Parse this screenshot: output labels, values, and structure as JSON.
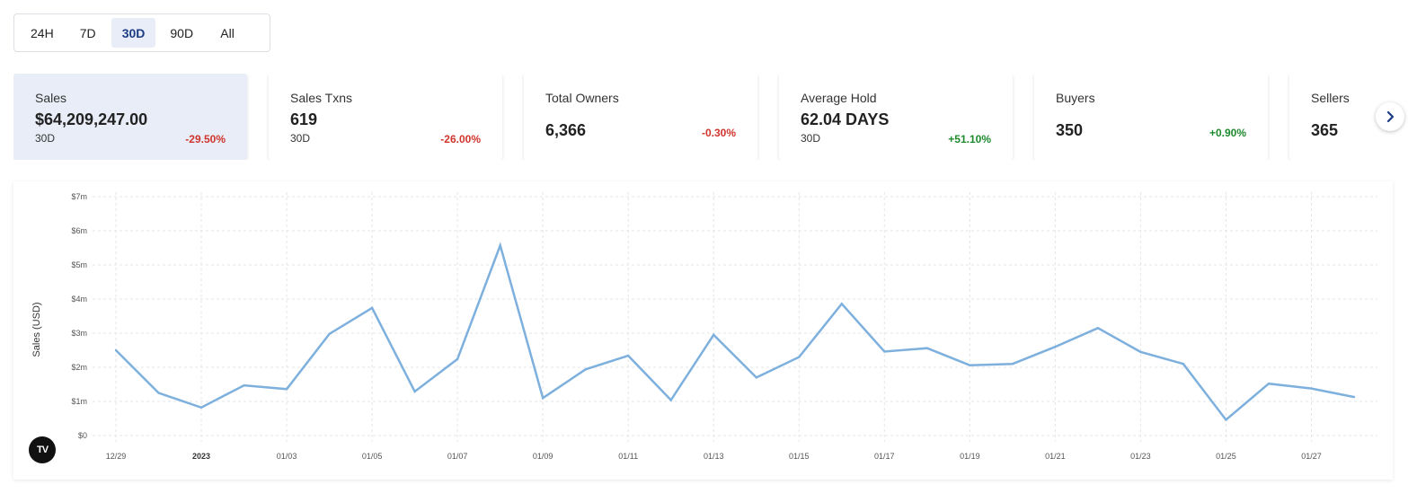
{
  "range_toggle": {
    "options": [
      "24H",
      "7D",
      "30D",
      "90D",
      "All"
    ],
    "selected": "30D"
  },
  "cards": [
    {
      "title": "Sales",
      "value": "$64,209,247.00",
      "period": "30D",
      "change": "-29.50%",
      "trend": "negative",
      "active": true
    },
    {
      "title": "Sales Txns",
      "value": "619",
      "period": "30D",
      "change": "-26.00%",
      "trend": "negative",
      "active": false
    },
    {
      "title": "Total Owners",
      "value": "6,366",
      "period": "",
      "change": "-0.30%",
      "trend": "negative",
      "active": false
    },
    {
      "title": "Average Hold",
      "value": "62.04 DAYS",
      "period": "30D",
      "change": "+51.10%",
      "trend": "positive",
      "active": false
    },
    {
      "title": "Buyers",
      "value": "350",
      "period": "",
      "change": "+0.90%",
      "trend": "positive",
      "active": false
    },
    {
      "title": "Sellers",
      "value": "365",
      "period": "",
      "change": "",
      "trend": "",
      "active": false
    }
  ],
  "icons": {
    "next": "chevron-right-icon",
    "logo": "tradingview-logo"
  },
  "logo_text": "TV",
  "colors": {
    "line": "#7eb0de",
    "accent": "#1d3c84",
    "negative": "#d0342c",
    "positive": "#1e8a2e",
    "active_card": "#e8edf7"
  },
  "chart_data": {
    "type": "line",
    "ylabel": "Sales (USD)",
    "y_ticks": [
      "$0",
      "$1m",
      "$2m",
      "$3m",
      "$4m",
      "$5m",
      "$6m",
      "$7m"
    ],
    "y_tick_values": [
      0,
      1,
      2,
      3,
      4,
      5,
      6,
      7
    ],
    "ylim": [
      0,
      7
    ],
    "y_unit": "million USD",
    "x_tick_labels": [
      "12/29",
      "2023",
      "01/03",
      "01/05",
      "01/07",
      "01/09",
      "01/11",
      "01/13",
      "01/15",
      "01/17",
      "01/19",
      "01/21",
      "01/23",
      "01/25",
      "01/27"
    ],
    "x_tick_bold": [
      "2023"
    ],
    "x": [
      "2022-12-29",
      "2022-12-30",
      "2022-12-31",
      "2023-01-01",
      "2023-01-02",
      "2023-01-03",
      "2023-01-04",
      "2023-01-05",
      "2023-01-06",
      "2023-01-07",
      "2023-01-08",
      "2023-01-09",
      "2023-01-10",
      "2023-01-11",
      "2023-01-12",
      "2023-01-13",
      "2023-01-14",
      "2023-01-15",
      "2023-01-16",
      "2023-01-17",
      "2023-01-18",
      "2023-01-19",
      "2023-01-20",
      "2023-01-21",
      "2023-01-22",
      "2023-01-23",
      "2023-01-24",
      "2023-01-25",
      "2023-01-26",
      "2023-01-27"
    ],
    "series": [
      {
        "values": [
          2.5,
          1.25,
          0.82,
          1.47,
          1.36,
          2.98,
          3.74,
          1.29,
          2.24,
          5.57,
          1.1,
          1.94,
          2.34,
          1.04,
          2.95,
          1.7,
          2.3,
          3.86,
          2.46,
          2.56,
          2.06,
          2.1,
          2.6,
          3.15,
          2.45,
          2.1,
          0.46,
          1.52,
          1.38,
          1.13
        ]
      }
    ],
    "grid": true,
    "legend": "none"
  }
}
